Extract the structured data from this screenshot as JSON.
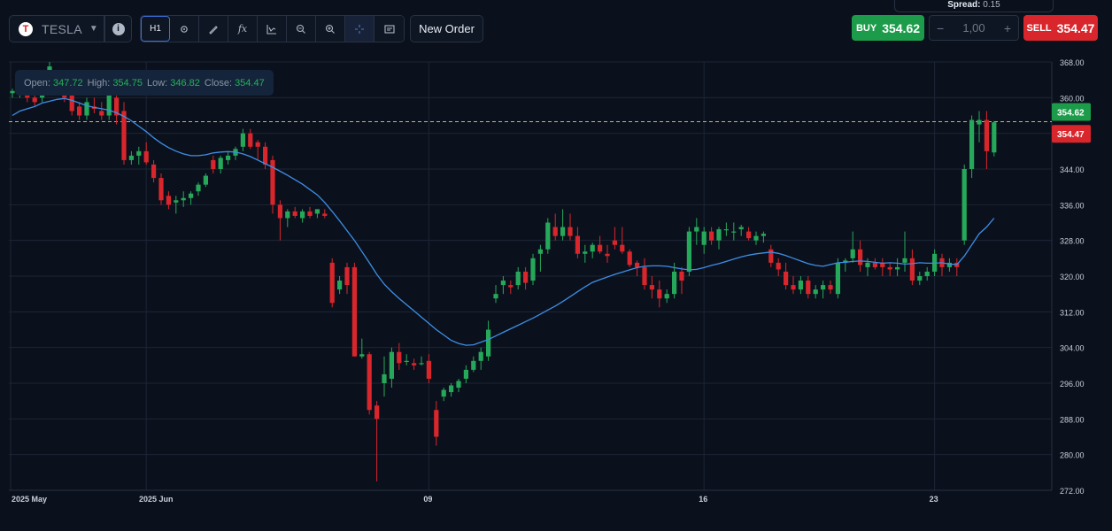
{
  "toolbar": {
    "symbol": "TESLA",
    "symbol_logo": "T",
    "timeframe": "H1",
    "new_order_label": "New Order",
    "icons": [
      "settings-icon",
      "pencil-icon",
      "fx-icon",
      "indicator-icon",
      "zoom-out-icon",
      "zoom-in-icon",
      "crosshair-icon",
      "screenshot-icon"
    ]
  },
  "trade": {
    "spread_label": "Spread:",
    "spread_value": "0.15",
    "buy_label": "BUY",
    "buy_price": "354.62",
    "sell_label": "SELL",
    "sell_price": "354.47",
    "quantity": "1,00",
    "minus": "−",
    "plus": "+"
  },
  "ohlc": {
    "open_label": "Open:",
    "open": "347.72",
    "high_label": "High:",
    "high": "354.75",
    "low_label": "Low:",
    "low": "346.82",
    "close_label": "Close:",
    "close": "354.47"
  },
  "colors": {
    "up": "#26a85a",
    "down": "#d8262c",
    "ma": "#3d8ee6",
    "grid": "#1c2535",
    "bg": "#0b111c"
  },
  "chart_data": {
    "type": "candlestick",
    "ylim": [
      272,
      368
    ],
    "yticks": [
      "368.00",
      "360.00",
      "352.00",
      "344.00",
      "336.00",
      "328.00",
      "320.00",
      "312.00",
      "304.00",
      "296.00",
      "288.00",
      "280.00",
      "272.00"
    ],
    "xticks": [
      {
        "label": "2025 May",
        "index": 0
      },
      {
        "label": "2025 Jun",
        "index": 18
      },
      {
        "label": "09",
        "index": 56
      },
      {
        "label": "16",
        "index": 93
      },
      {
        "label": "23",
        "index": 124
      }
    ],
    "price_lines": [
      {
        "label": "354.62",
        "value": 354.62,
        "color": "#1c9c4a"
      },
      {
        "label": "354.47",
        "value": 354.47,
        "color": "#d8262c"
      }
    ],
    "candles": [
      [
        361.0,
        362.0,
        360.0,
        361.5
      ],
      [
        361.5,
        366.0,
        360.0,
        365.0
      ],
      [
        364.0,
        366.0,
        359.0,
        360.0
      ],
      [
        360.0,
        362.0,
        358.0,
        359.0
      ],
      [
        360.0,
        364.0,
        359.0,
        363.0
      ],
      [
        363.0,
        368.0,
        362.0,
        367.0
      ],
      [
        364.0,
        366.0,
        361.0,
        362.0
      ],
      [
        362.0,
        364.0,
        359.0,
        360.0
      ],
      [
        361.0,
        362.0,
        356.0,
        357.0
      ],
      [
        358.0,
        359.0,
        355.0,
        356.0
      ],
      [
        356.0,
        360.0,
        355.0,
        359.0
      ],
      [
        358.0,
        360.0,
        356.5,
        357.5
      ],
      [
        357.0,
        359.0,
        355.0,
        356.0
      ],
      [
        356.0,
        363.0,
        355.0,
        362.0
      ],
      [
        360.0,
        361.5,
        354.0,
        356.0
      ],
      [
        357.0,
        359.0,
        345.0,
        346.0
      ],
      [
        346.0,
        348.0,
        345.0,
        347.0
      ],
      [
        347.0,
        349.0,
        345.0,
        348.0
      ],
      [
        348.0,
        350.0,
        345.0,
        345.5
      ],
      [
        345.0,
        346.0,
        341.0,
        342.0
      ],
      [
        342.0,
        343.0,
        336.0,
        337.0
      ],
      [
        338.0,
        339.0,
        335.0,
        336.0
      ],
      [
        336.5,
        338.0,
        334.0,
        337.0
      ],
      [
        337.0,
        339.0,
        335.5,
        337.5
      ],
      [
        337.5,
        339.0,
        336.0,
        338.5
      ],
      [
        339.0,
        341.0,
        338.0,
        340.5
      ],
      [
        340.5,
        343.0,
        340.0,
        342.5
      ],
      [
        346.0,
        347.0,
        343.0,
        344.0
      ],
      [
        344.0,
        347.0,
        343.0,
        346.5
      ],
      [
        346.0,
        348.0,
        345.0,
        347.0
      ],
      [
        347.0,
        349.0,
        346.0,
        348.5
      ],
      [
        349.0,
        353.0,
        348.0,
        352.0
      ],
      [
        352.0,
        353.0,
        348.5,
        349.0
      ],
      [
        350.0,
        350.5,
        346.0,
        349.0
      ],
      [
        349.0,
        350.0,
        344.0,
        345.0
      ],
      [
        346.0,
        347.0,
        334.0,
        336.0
      ],
      [
        336.0,
        337.0,
        328.0,
        333.0
      ],
      [
        333.0,
        335.0,
        331.0,
        334.5
      ],
      [
        334.5,
        335.5,
        333.0,
        333.5
      ],
      [
        333.0,
        335.0,
        332.0,
        334.5
      ],
      [
        334.5,
        335.5,
        333.0,
        333.5
      ],
      [
        334.0,
        335.0,
        333.0,
        335.0
      ],
      [
        334.0,
        335.0,
        333.0,
        333.5
      ],
      [
        323.0,
        324.0,
        313.0,
        314.0
      ],
      [
        317.0,
        320.0,
        316.0,
        319.0
      ],
      [
        322.0,
        323.0,
        316.0,
        318.0
      ],
      [
        322.0,
        323.0,
        302.0,
        302.0
      ],
      [
        302.0,
        306.0,
        301.5,
        302.5
      ],
      [
        302.5,
        303.0,
        289.0,
        290.0
      ],
      [
        291.0,
        292.0,
        274.0,
        288.0
      ],
      [
        296.0,
        302.0,
        293.0,
        298.0
      ],
      [
        297.0,
        304.0,
        295.0,
        303.0
      ],
      [
        303.0,
        305.0,
        299.0,
        300.5
      ],
      [
        301.0,
        302.5,
        300.0,
        301.0
      ],
      [
        300.5,
        301.5,
        299.0,
        300.0
      ],
      [
        300.5,
        302.0,
        300.0,
        300.5
      ],
      [
        301.0,
        302.5,
        296.0,
        297.0
      ],
      [
        290.0,
        292.0,
        282.0,
        284.0
      ],
      [
        293.0,
        295.0,
        292.0,
        294.5
      ],
      [
        294.0,
        296.0,
        293.0,
        295.5
      ],
      [
        295.0,
        297.0,
        294.0,
        296.5
      ],
      [
        297.0,
        300.0,
        296.0,
        299.0
      ],
      [
        299.0,
        302.0,
        298.5,
        301.0
      ],
      [
        301.0,
        304.0,
        299.0,
        303.0
      ],
      [
        302.0,
        310.0,
        301.0,
        308.0
      ],
      [
        315.0,
        318.0,
        314.0,
        316.0
      ],
      [
        318.0,
        320.0,
        316.0,
        319.0
      ],
      [
        318.0,
        319.0,
        316.0,
        317.5
      ],
      [
        318.0,
        322.0,
        317.0,
        321.0
      ],
      [
        321.0,
        322.0,
        317.0,
        318.5
      ],
      [
        319.0,
        325.0,
        318.0,
        324.0
      ],
      [
        325.0,
        327.0,
        321.0,
        326.0
      ],
      [
        326.0,
        333.0,
        325.0,
        332.0
      ],
      [
        331.0,
        334.0,
        328.0,
        329.0
      ],
      [
        329.0,
        335.0,
        328.0,
        331.0
      ],
      [
        331.0,
        334.0,
        328.0,
        329.0
      ],
      [
        329.0,
        331.0,
        324.0,
        325.0
      ],
      [
        325.0,
        327.0,
        323.0,
        325.5
      ],
      [
        325.5,
        327.5,
        324.0,
        327.0
      ],
      [
        327.0,
        329.0,
        325.0,
        325.5
      ],
      [
        325.0,
        327.0,
        323.0,
        324.5
      ],
      [
        328.0,
        331.0,
        326.0,
        327.0
      ],
      [
        327.0,
        331.0,
        325.0,
        325.5
      ],
      [
        325.5,
        326.0,
        322.0,
        322.5
      ],
      [
        323.0,
        323.5,
        320.0,
        322.0
      ],
      [
        322.0,
        324.0,
        317.0,
        318.0
      ],
      [
        318.0,
        320.0,
        315.0,
        317.0
      ],
      [
        317.0,
        319.0,
        313.0,
        315.0
      ],
      [
        315.0,
        317.0,
        314.0,
        316.0
      ],
      [
        316.0,
        323.0,
        315.0,
        321.0
      ],
      [
        321.0,
        322.0,
        316.0,
        319.0
      ],
      [
        321.0,
        331.0,
        320.0,
        330.0
      ],
      [
        330.0,
        333.0,
        327.0,
        331.0
      ],
      [
        327.0,
        331.0,
        325.0,
        330.0
      ],
      [
        330.0,
        331.0,
        327.0,
        328.0
      ],
      [
        328.0,
        331.0,
        326.0,
        330.5
      ],
      [
        330.5,
        332.0,
        329.0,
        330.5
      ],
      [
        330.0,
        332.0,
        328.0,
        330.0
      ],
      [
        330.5,
        331.5,
        329.0,
        331.0
      ],
      [
        330.0,
        331.0,
        328.0,
        328.5
      ],
      [
        328.0,
        330.0,
        327.0,
        329.0
      ],
      [
        329.0,
        330.0,
        327.5,
        329.5
      ],
      [
        326.0,
        327.0,
        322.0,
        323.0
      ],
      [
        323.0,
        324.0,
        320.0,
        321.5
      ],
      [
        321.0,
        323.0,
        317.0,
        318.0
      ],
      [
        318.0,
        320.0,
        316.0,
        317.0
      ],
      [
        317.0,
        320.0,
        316.0,
        319.0
      ],
      [
        319.0,
        320.0,
        315.0,
        316.0
      ],
      [
        316.0,
        318.0,
        315.0,
        317.0
      ],
      [
        317.0,
        319.0,
        315.0,
        318.0
      ],
      [
        318.0,
        319.0,
        316.0,
        317.0
      ],
      [
        316.0,
        324.0,
        315.0,
        323.0
      ],
      [
        323.0,
        324.0,
        321.0,
        323.5
      ],
      [
        324.0,
        330.0,
        323.0,
        326.0
      ],
      [
        326.0,
        328.0,
        321.0,
        322.5
      ],
      [
        322.0,
        324.0,
        320.0,
        323.0
      ],
      [
        323.0,
        324.0,
        321.5,
        322.0
      ],
      [
        323.0,
        324.0,
        320.0,
        322.0
      ],
      [
        322.0,
        323.0,
        320.0,
        321.5
      ],
      [
        321.5,
        324.0,
        320.0,
        322.0
      ],
      [
        323.0,
        330.0,
        321.0,
        324.0
      ],
      [
        324.0,
        326.0,
        318.0,
        319.0
      ],
      [
        319.0,
        321.0,
        318.0,
        320.0
      ],
      [
        320.0,
        322.0,
        319.0,
        321.0
      ],
      [
        321.0,
        326.0,
        320.0,
        325.0
      ],
      [
        324.0,
        325.0,
        320.0,
        322.0
      ],
      [
        322.0,
        324.0,
        321.0,
        323.0
      ],
      [
        323.0,
        324.0,
        320.0,
        322.0
      ],
      [
        328.0,
        345.0,
        327.0,
        344.0
      ],
      [
        344.0,
        356.0,
        342.0,
        355.0
      ],
      [
        354.0,
        357.0,
        350.0,
        355.0
      ],
      [
        355.0,
        357.0,
        344.0,
        348.0
      ],
      [
        347.72,
        354.75,
        346.82,
        354.47
      ]
    ],
    "ma": [
      356,
      357,
      357.5,
      358,
      358.8,
      359.2,
      359.6,
      359.8,
      359.4,
      358.8,
      358.2,
      357.8,
      357.5,
      357.2,
      356.6,
      355.8,
      354.8,
      353.6,
      352.4,
      351.0,
      349.8,
      348.8,
      348.0,
      347.4,
      347.0,
      347.0,
      347.2,
      347.6,
      347.8,
      347.9,
      347.8,
      347.4,
      346.8,
      346.0,
      345.2,
      344.4,
      343.5,
      342.6,
      341.6,
      340.6,
      339.4,
      338.2,
      336.5,
      334.5,
      332.4,
      330.2,
      328.0,
      325.5,
      323.0,
      320.4,
      318.2,
      316.5,
      315.0,
      313.6,
      312.2,
      310.8,
      309.4,
      308.0,
      306.8,
      305.6,
      304.9,
      304.5,
      304.6,
      305.2,
      305.8,
      306.6,
      307.4,
      308.2,
      309.0,
      309.8,
      310.6,
      311.5,
      312.4,
      313.3,
      314.3,
      315.4,
      316.5,
      317.6,
      318.6,
      319.2,
      319.8,
      320.4,
      320.9,
      321.4,
      321.9,
      322.2,
      322.3,
      322.3,
      322.2,
      321.9,
      321.6,
      321.4,
      321.5,
      321.9,
      322.4,
      322.8,
      323.3,
      323.8,
      324.3,
      324.7,
      325.0,
      325.2,
      325.4,
      325.1,
      324.6,
      324.0,
      323.4,
      322.8,
      322.4,
      322.2,
      322.6,
      323.0,
      323.1,
      323.3,
      323.4,
      323.3,
      323.1,
      322.9,
      323.0,
      322.9,
      322.7,
      322.8,
      323.0,
      322.9,
      322.9,
      323.0,
      322.7,
      322.6,
      324.5,
      327.0,
      329.5,
      331.0,
      333.0
    ]
  }
}
